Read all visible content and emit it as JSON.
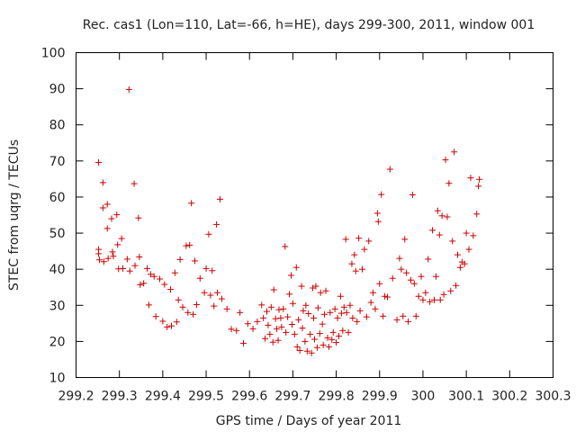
{
  "chart_data": {
    "type": "scatter",
    "title": "Rec. cas1 (Lon=110, Lat=-66, h=HE), days 299-300, 2011, window 001",
    "xlabel": "GPS time / Days of year 2011",
    "ylabel": "STEC from uqrg / TECUs",
    "xlim": [
      299.2,
      300.3
    ],
    "ylim": [
      10,
      100
    ],
    "xticks": [
      299.2,
      299.3,
      299.4,
      299.5,
      299.6,
      299.7,
      299.8,
      299.9,
      300,
      300.1,
      300.2,
      300.3
    ],
    "yticks": [
      10,
      20,
      30,
      40,
      50,
      60,
      70,
      80,
      90,
      100
    ],
    "grid": false,
    "legend": "none",
    "marker": "plus",
    "color": "#cc0000",
    "points": [
      [
        299.252,
        69.6
      ],
      [
        299.252,
        45.5
      ],
      [
        299.252,
        44.3
      ],
      [
        299.254,
        42.6
      ],
      [
        299.262,
        64.0
      ],
      [
        299.262,
        57.0
      ],
      [
        299.264,
        42.1
      ],
      [
        299.272,
        58.0
      ],
      [
        299.272,
        51.3
      ],
      [
        299.274,
        43.0
      ],
      [
        299.282,
        54.0
      ],
      [
        299.284,
        44.8
      ],
      [
        299.286,
        43.6
      ],
      [
        299.294,
        55.1
      ],
      [
        299.296,
        46.8
      ],
      [
        299.298,
        40.1
      ],
      [
        299.305,
        48.5
      ],
      [
        299.308,
        40.2
      ],
      [
        299.318,
        42.8
      ],
      [
        299.322,
        89.8
      ],
      [
        299.324,
        39.5
      ],
      [
        299.334,
        63.7
      ],
      [
        299.336,
        41.0
      ],
      [
        299.344,
        54.2
      ],
      [
        299.346,
        43.4
      ],
      [
        299.348,
        35.7
      ],
      [
        299.356,
        36.1
      ],
      [
        299.364,
        40.2
      ],
      [
        299.368,
        30.1
      ],
      [
        299.372,
        38.6
      ],
      [
        299.38,
        38.0
      ],
      [
        299.384,
        26.9
      ],
      [
        299.393,
        37.3
      ],
      [
        299.4,
        25.6
      ],
      [
        299.404,
        35.8
      ],
      [
        299.41,
        24.0
      ],
      [
        299.418,
        34.4
      ],
      [
        299.42,
        24.3
      ],
      [
        299.428,
        39.0
      ],
      [
        299.432,
        25.4
      ],
      [
        299.436,
        31.5
      ],
      [
        299.44,
        42.7
      ],
      [
        299.446,
        29.5
      ],
      [
        299.454,
        46.5
      ],
      [
        299.458,
        28.0
      ],
      [
        299.462,
        46.7
      ],
      [
        299.466,
        58.3
      ],
      [
        299.47,
        27.5
      ],
      [
        299.474,
        42.3
      ],
      [
        299.478,
        30.2
      ],
      [
        299.486,
        37.5
      ],
      [
        299.496,
        33.5
      ],
      [
        299.5,
        40.2
      ],
      [
        299.506,
        49.7
      ],
      [
        299.51,
        32.8
      ],
      [
        299.514,
        39.6
      ],
      [
        299.518,
        29.8
      ],
      [
        299.524,
        52.4
      ],
      [
        299.526,
        33.5
      ],
      [
        299.532,
        59.4
      ],
      [
        299.536,
        31.8
      ],
      [
        299.548,
        29.0
      ],
      [
        299.558,
        23.4
      ],
      [
        299.57,
        23.0
      ],
      [
        299.578,
        28.0
      ],
      [
        299.586,
        19.5
      ],
      [
        299.596,
        24.9
      ],
      [
        299.608,
        23.5
      ],
      [
        299.618,
        25.5
      ],
      [
        299.628,
        30.1
      ],
      [
        299.632,
        26.5
      ],
      [
        299.636,
        20.8
      ],
      [
        299.64,
        28.3
      ],
      [
        299.643,
        24.5
      ],
      [
        299.647,
        22.0
      ],
      [
        299.65,
        29.5
      ],
      [
        299.654,
        19.8
      ],
      [
        299.656,
        34.3
      ],
      [
        299.66,
        26.3
      ],
      [
        299.663,
        23.5
      ],
      [
        299.666,
        20.3
      ],
      [
        299.668,
        28.8
      ],
      [
        299.672,
        26.5
      ],
      [
        299.674,
        24.0
      ],
      [
        299.678,
        29.0
      ],
      [
        299.682,
        46.3
      ],
      [
        299.684,
        22.5
      ],
      [
        299.688,
        26.8
      ],
      [
        299.692,
        33.1
      ],
      [
        299.696,
        38.3
      ],
      [
        299.698,
        24.7
      ],
      [
        299.7,
        30.5
      ],
      [
        299.704,
        22.0
      ],
      [
        299.708,
        40.5
      ],
      [
        299.71,
        18.5
      ],
      [
        299.713,
        26.0
      ],
      [
        299.716,
        17.5
      ],
      [
        299.72,
        35.3
      ],
      [
        299.722,
        23.7
      ],
      [
        299.724,
        28.5
      ],
      [
        299.728,
        20.0
      ],
      [
        299.73,
        30.0
      ],
      [
        299.733,
        17.3
      ],
      [
        299.736,
        27.7
      ],
      [
        299.74,
        22.0
      ],
      [
        299.743,
        16.8
      ],
      [
        299.746,
        34.8
      ],
      [
        299.748,
        26.5
      ],
      [
        299.75,
        20.6
      ],
      [
        299.753,
        35.3
      ],
      [
        299.756,
        18.3
      ],
      [
        299.758,
        29.3
      ],
      [
        299.762,
        22.2
      ],
      [
        299.764,
        33.5
      ],
      [
        299.768,
        24.8
      ],
      [
        299.77,
        19.0
      ],
      [
        299.773,
        27.5
      ],
      [
        299.776,
        34.0
      ],
      [
        299.78,
        21.0
      ],
      [
        299.783,
        18.5
      ],
      [
        299.786,
        28.0
      ],
      [
        299.79,
        20.5
      ],
      [
        299.793,
        22.5
      ],
      [
        299.797,
        29.0
      ],
      [
        299.8,
        19.7
      ],
      [
        299.803,
        26.5
      ],
      [
        299.806,
        21.5
      ],
      [
        299.81,
        32.5
      ],
      [
        299.812,
        27.8
      ],
      [
        299.815,
        23.0
      ],
      [
        299.818,
        29.5
      ],
      [
        299.822,
        48.3
      ],
      [
        299.824,
        28.0
      ],
      [
        299.828,
        22.5
      ],
      [
        299.832,
        30.0
      ],
      [
        299.836,
        41.5
      ],
      [
        299.838,
        26.5
      ],
      [
        299.842,
        44.0
      ],
      [
        299.845,
        39.5
      ],
      [
        299.848,
        25.5
      ],
      [
        299.852,
        48.6
      ],
      [
        299.855,
        28.5
      ],
      [
        299.86,
        40.0
      ],
      [
        299.865,
        45.5
      ],
      [
        299.87,
        26.8
      ],
      [
        299.875,
        47.8
      ],
      [
        299.88,
        30.8
      ],
      [
        299.885,
        33.5
      ],
      [
        299.89,
        29.0
      ],
      [
        299.895,
        55.5
      ],
      [
        299.897,
        53.2
      ],
      [
        299.9,
        36.0
      ],
      [
        299.904,
        60.7
      ],
      [
        299.908,
        27.0
      ],
      [
        299.912,
        32.5
      ],
      [
        299.918,
        32.3
      ],
      [
        299.924,
        67.7
      ],
      [
        299.93,
        37.5
      ],
      [
        299.94,
        26.0
      ],
      [
        299.946,
        43.0
      ],
      [
        299.95,
        40.0
      ],
      [
        299.954,
        27.0
      ],
      [
        299.958,
        48.3
      ],
      [
        299.962,
        39.0
      ],
      [
        299.966,
        25.5
      ],
      [
        299.972,
        37.0
      ],
      [
        299.976,
        60.6
      ],
      [
        299.98,
        36.0
      ],
      [
        299.984,
        27.0
      ],
      [
        299.99,
        32.5
      ],
      [
        299.996,
        38.0
      ],
      [
        300.0,
        31.5
      ],
      [
        300.006,
        33.5
      ],
      [
        300.012,
        42.8
      ],
      [
        300.016,
        31.0
      ],
      [
        300.022,
        50.8
      ],
      [
        300.026,
        31.5
      ],
      [
        300.03,
        38.0
      ],
      [
        300.034,
        56.2
      ],
      [
        300.038,
        49.5
      ],
      [
        300.04,
        31.5
      ],
      [
        300.044,
        54.8
      ],
      [
        300.048,
        33.0
      ],
      [
        300.052,
        70.3
      ],
      [
        300.056,
        54.5
      ],
      [
        300.06,
        63.8
      ],
      [
        300.064,
        34.0
      ],
      [
        300.068,
        47.8
      ],
      [
        300.072,
        72.5
      ],
      [
        300.076,
        35.5
      ],
      [
        300.08,
        44.0
      ],
      [
        300.086,
        40.5
      ],
      [
        300.09,
        42.0
      ],
      [
        300.096,
        41.5
      ],
      [
        300.1,
        50.0
      ],
      [
        300.106,
        45.5
      ],
      [
        300.11,
        65.3
      ],
      [
        300.116,
        49.3
      ],
      [
        300.124,
        55.3
      ],
      [
        300.128,
        63.0
      ],
      [
        300.13,
        64.9
      ]
    ]
  }
}
